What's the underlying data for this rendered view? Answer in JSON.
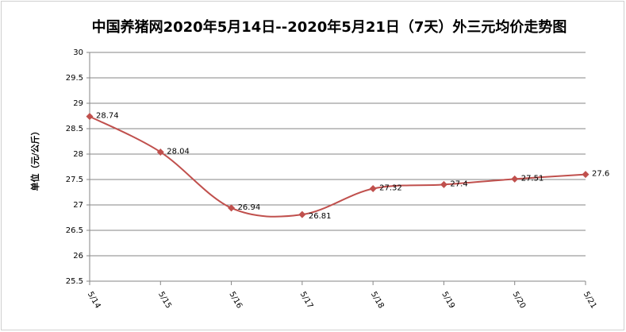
{
  "chart_data": {
    "type": "line",
    "title": "中国养猪网2020年5月14日--2020年5月21日（7天）外三元均价走势图",
    "y_label": "单位（元/公斤）",
    "categories": [
      "5/14",
      "5/15",
      "5/16",
      "5/17",
      "5/18",
      "5/19",
      "5/20",
      "5/21"
    ],
    "series": [
      {
        "name": "外三元均价",
        "color": "#c0504d",
        "values": [
          28.74,
          28.04,
          26.94,
          26.81,
          27.32,
          27.4,
          27.51,
          27.6
        ]
      }
    ],
    "ylim": [
      25.5,
      30
    ],
    "yticks": [
      25.5,
      26,
      26.5,
      27,
      27.5,
      28,
      28.5,
      29,
      29.5,
      30
    ],
    "grid": true
  }
}
